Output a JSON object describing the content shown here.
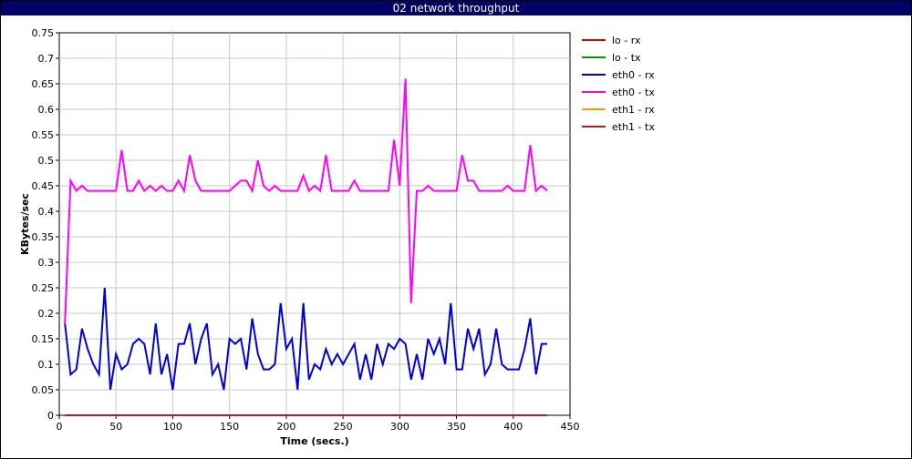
{
  "window": {
    "title": "02 network throughput"
  },
  "chart_data": {
    "type": "line",
    "title": "02 network throughput",
    "xlabel": "Time (secs.)",
    "ylabel": "KBytes/sec",
    "xlim": [
      0,
      450
    ],
    "ylim": [
      0,
      0.75
    ],
    "x_ticks": [
      "0",
      "50",
      "100",
      "150",
      "200",
      "250",
      "300",
      "350",
      "400",
      "450"
    ],
    "y_ticks": [
      "0",
      "0.05",
      "0.1",
      "0.15",
      "0.2",
      "0.25",
      "0.3",
      "0.35",
      "0.4",
      "0.45",
      "0.5",
      "0.55",
      "0.6",
      "0.65",
      "0.7",
      "0.75"
    ],
    "grid": true,
    "legend_position": "right",
    "x": [
      5,
      10,
      15,
      20,
      25,
      30,
      35,
      40,
      45,
      50,
      55,
      60,
      65,
      70,
      75,
      80,
      85,
      90,
      95,
      100,
      105,
      110,
      115,
      120,
      125,
      130,
      135,
      140,
      145,
      150,
      155,
      160,
      165,
      170,
      175,
      180,
      185,
      190,
      195,
      200,
      205,
      210,
      215,
      220,
      225,
      230,
      235,
      240,
      245,
      250,
      255,
      260,
      265,
      270,
      275,
      280,
      285,
      290,
      295,
      300,
      305,
      310,
      315,
      320,
      325,
      330,
      335,
      340,
      345,
      350,
      355,
      360,
      365,
      370,
      375,
      380,
      385,
      390,
      395,
      400,
      405,
      410,
      415,
      420,
      425,
      430
    ],
    "series": [
      {
        "name": "lo - rx",
        "color": "#dd0000",
        "values": [
          0,
          0,
          0,
          0,
          0,
          0,
          0,
          0,
          0,
          0,
          0,
          0,
          0,
          0,
          0,
          0,
          0,
          0,
          0,
          0,
          0,
          0,
          0,
          0,
          0,
          0,
          0,
          0,
          0,
          0,
          0,
          0,
          0,
          0,
          0,
          0,
          0,
          0,
          0,
          0,
          0,
          0,
          0,
          0,
          0,
          0,
          0,
          0,
          0,
          0,
          0,
          0,
          0,
          0,
          0,
          0,
          0,
          0,
          0,
          0,
          0,
          0,
          0,
          0,
          0,
          0,
          0,
          0,
          0,
          0,
          0,
          0,
          0,
          0,
          0,
          0,
          0,
          0,
          0,
          0,
          0,
          0,
          0,
          0,
          0,
          0
        ]
      },
      {
        "name": "lo - tx",
        "color": "#009900",
        "values": [
          0,
          0,
          0,
          0,
          0,
          0,
          0,
          0,
          0,
          0,
          0,
          0,
          0,
          0,
          0,
          0,
          0,
          0,
          0,
          0,
          0,
          0,
          0,
          0,
          0,
          0,
          0,
          0,
          0,
          0,
          0,
          0,
          0,
          0,
          0,
          0,
          0,
          0,
          0,
          0,
          0,
          0,
          0,
          0,
          0,
          0,
          0,
          0,
          0,
          0,
          0,
          0,
          0,
          0,
          0,
          0,
          0,
          0,
          0,
          0,
          0,
          0,
          0,
          0,
          0,
          0,
          0,
          0,
          0,
          0,
          0,
          0,
          0,
          0,
          0,
          0,
          0,
          0,
          0,
          0,
          0,
          0,
          0,
          0,
          0,
          0
        ]
      },
      {
        "name": "eth0 - rx",
        "color": "#0000dd",
        "values": [
          0.18,
          0.08,
          0.09,
          0.17,
          0.13,
          0.1,
          0.08,
          0.25,
          0.05,
          0.12,
          0.09,
          0.1,
          0.14,
          0.15,
          0.14,
          0.08,
          0.18,
          0.08,
          0.12,
          0.05,
          0.14,
          0.14,
          0.18,
          0.1,
          0.15,
          0.18,
          0.08,
          0.1,
          0.05,
          0.15,
          0.14,
          0.15,
          0.09,
          0.19,
          0.12,
          0.09,
          0.09,
          0.1,
          0.22,
          0.13,
          0.15,
          0.05,
          0.22,
          0.07,
          0.1,
          0.09,
          0.13,
          0.1,
          0.12,
          0.1,
          0.12,
          0.14,
          0.07,
          0.12,
          0.07,
          0.14,
          0.1,
          0.14,
          0.13,
          0.15,
          0.14,
          0.07,
          0.12,
          0.07,
          0.15,
          0.12,
          0.15,
          0.1,
          0.22,
          0.09,
          0.09,
          0.17,
          0.13,
          0.17,
          0.08,
          0.1,
          0.17,
          0.1,
          0.09,
          0.09,
          0.09,
          0.13,
          0.19,
          0.08,
          0.14,
          0.14
        ]
      },
      {
        "name": "eth0 - tx",
        "color": "#ff00ff",
        "values": [
          0.18,
          0.46,
          0.44,
          0.45,
          0.44,
          0.44,
          0.44,
          0.44,
          0.44,
          0.44,
          0.52,
          0.44,
          0.44,
          0.46,
          0.44,
          0.45,
          0.44,
          0.45,
          0.44,
          0.44,
          0.46,
          0.44,
          0.51,
          0.46,
          0.44,
          0.44,
          0.44,
          0.44,
          0.44,
          0.44,
          0.45,
          0.46,
          0.46,
          0.44,
          0.5,
          0.45,
          0.44,
          0.45,
          0.44,
          0.44,
          0.44,
          0.44,
          0.47,
          0.44,
          0.45,
          0.44,
          0.51,
          0.44,
          0.44,
          0.44,
          0.44,
          0.46,
          0.44,
          0.44,
          0.44,
          0.44,
          0.44,
          0.44,
          0.54,
          0.45,
          0.66,
          0.22,
          0.44,
          0.44,
          0.45,
          0.44,
          0.44,
          0.44,
          0.44,
          0.44,
          0.51,
          0.46,
          0.46,
          0.44,
          0.44,
          0.44,
          0.44,
          0.44,
          0.45,
          0.44,
          0.44,
          0.44,
          0.53,
          0.44,
          0.45,
          0.44
        ]
      },
      {
        "name": "eth1 - rx",
        "color": "#ff9900",
        "values": [
          0,
          0,
          0,
          0,
          0,
          0,
          0,
          0,
          0,
          0,
          0,
          0,
          0,
          0,
          0,
          0,
          0,
          0,
          0,
          0,
          0,
          0,
          0,
          0,
          0,
          0,
          0,
          0,
          0,
          0,
          0,
          0,
          0,
          0,
          0,
          0,
          0,
          0,
          0,
          0,
          0,
          0,
          0,
          0,
          0,
          0,
          0,
          0,
          0,
          0,
          0,
          0,
          0,
          0,
          0,
          0,
          0,
          0,
          0,
          0,
          0,
          0,
          0,
          0,
          0,
          0,
          0,
          0,
          0,
          0,
          0,
          0,
          0,
          0,
          0,
          0,
          0,
          0,
          0,
          0,
          0,
          0,
          0,
          0,
          0,
          0
        ]
      },
      {
        "name": "eth1 - tx",
        "color": "#aa2222",
        "values": [
          0,
          0,
          0,
          0,
          0,
          0,
          0,
          0,
          0,
          0,
          0,
          0,
          0,
          0,
          0,
          0,
          0,
          0,
          0,
          0,
          0,
          0,
          0,
          0,
          0,
          0,
          0,
          0,
          0,
          0,
          0,
          0,
          0,
          0,
          0,
          0,
          0,
          0,
          0,
          0,
          0,
          0,
          0,
          0,
          0,
          0,
          0,
          0,
          0,
          0,
          0,
          0,
          0,
          0,
          0,
          0,
          0,
          0,
          0,
          0,
          0,
          0,
          0,
          0,
          0,
          0,
          0,
          0,
          0,
          0,
          0,
          0,
          0,
          0,
          0,
          0,
          0,
          0,
          0,
          0,
          0,
          0,
          0,
          0,
          0,
          0
        ]
      }
    ]
  }
}
